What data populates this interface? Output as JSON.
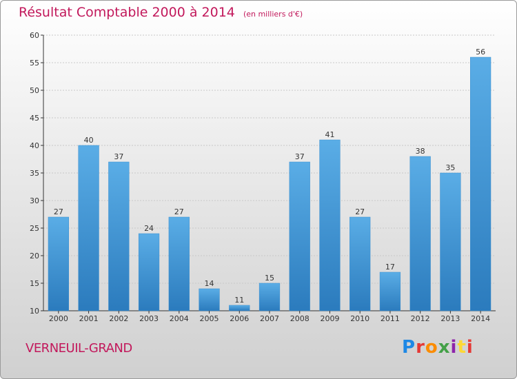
{
  "header": {
    "title": "Résultat Comptable 2000 à 2014",
    "subtitle": "(en milliers d'€)"
  },
  "footer": {
    "commune": "VERNEUIL-GRAND",
    "brand": "Proxiti",
    "brand_colors": [
      "#1e88e5",
      "#e53935",
      "#fb8c00",
      "#43a047",
      "#8e24aa",
      "#fdd835",
      "#e53935"
    ]
  },
  "colors": {
    "bar_light": "#5aade6",
    "bar_dark": "#2b7bbd",
    "title": "#c2185b",
    "axis": "#333333"
  },
  "chart_data": {
    "type": "bar",
    "categories": [
      "2000",
      "2001",
      "2002",
      "2003",
      "2004",
      "2005",
      "2006",
      "2007",
      "2008",
      "2009",
      "2010",
      "2011",
      "2012",
      "2013",
      "2014"
    ],
    "values": [
      27,
      40,
      37,
      24,
      27,
      14,
      11,
      15,
      37,
      41,
      27,
      17,
      38,
      35,
      56
    ],
    "ylim": [
      10,
      60
    ],
    "yticks": [
      10,
      15,
      20,
      25,
      30,
      35,
      40,
      45,
      50,
      55,
      60
    ],
    "grid": true,
    "data_labels": true
  }
}
